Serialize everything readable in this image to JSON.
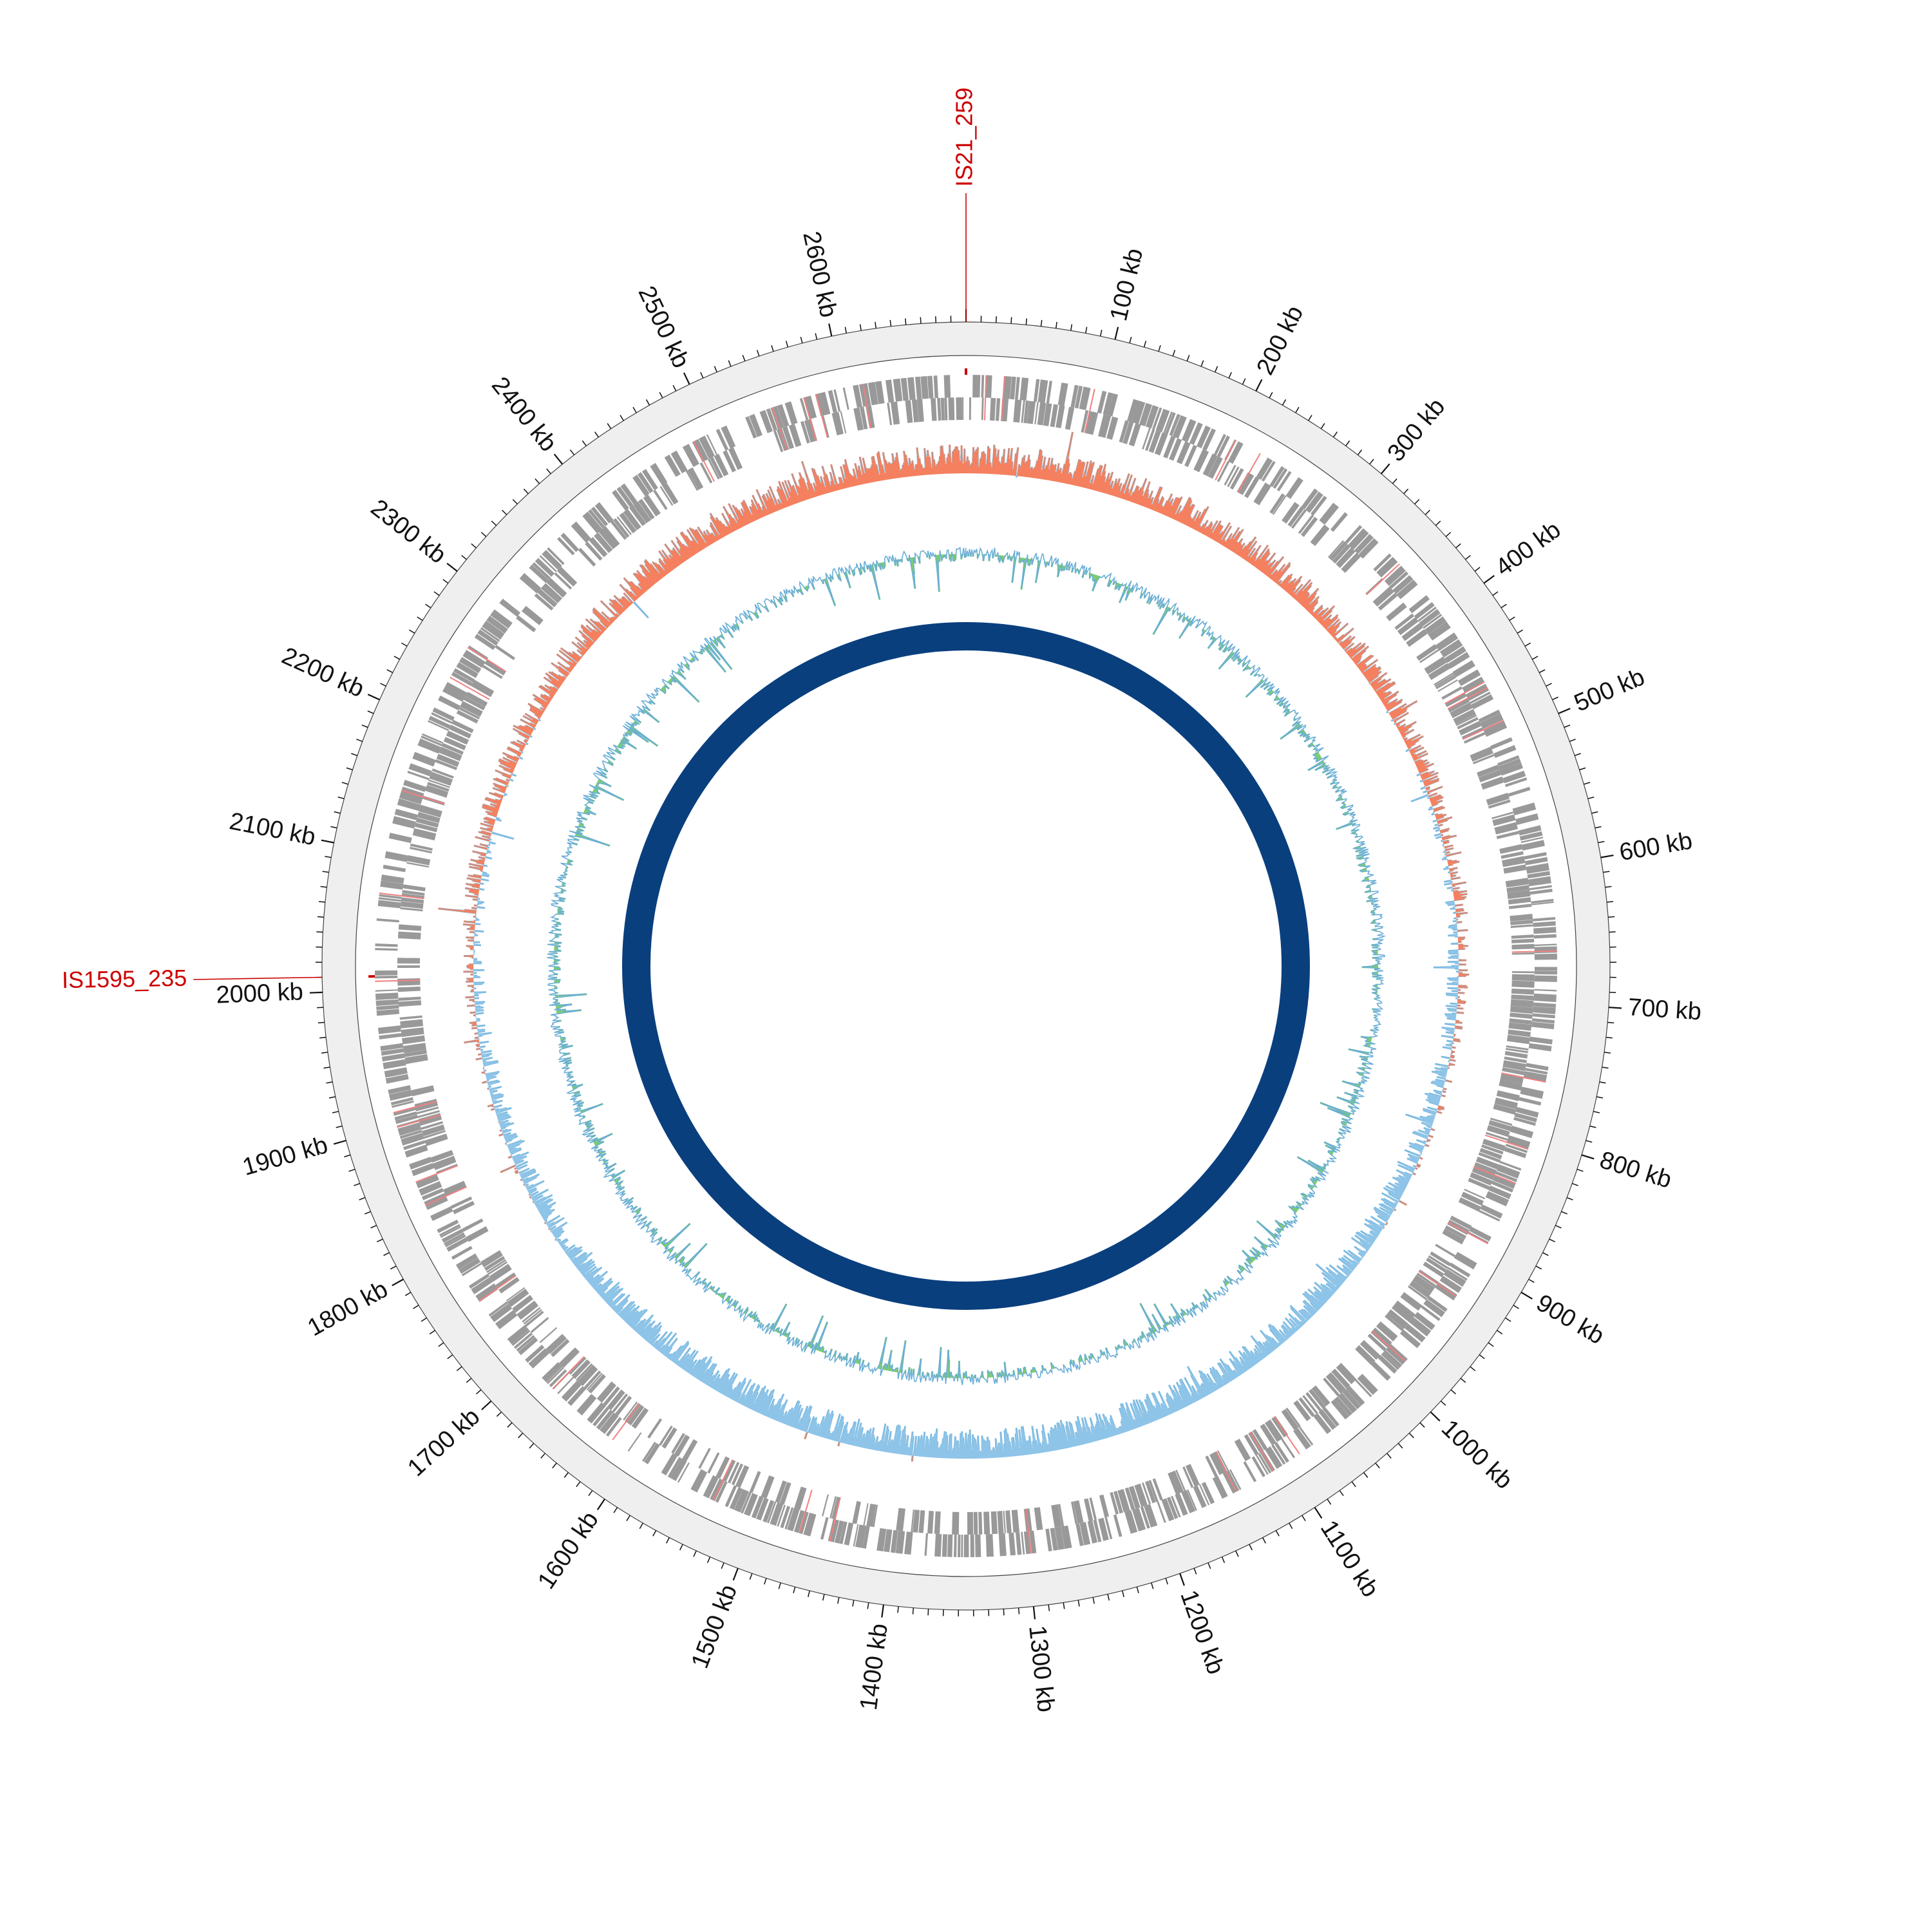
{
  "genome": {
    "length_kb": 2690,
    "tick_unit": "kb",
    "major_tick_step_kb": 100,
    "minor_tick_step_kb": 10,
    "tick_labels": [
      "100 kb",
      "200 kb",
      "300 kb",
      "400 kb",
      "500 kb",
      "600 kb",
      "700 kb",
      "800 kb",
      "900 kb",
      "1000 kb",
      "1100 kb",
      "1200 kb",
      "1300 kb",
      "1400 kb",
      "1500 kb",
      "1600 kb",
      "1700 kb",
      "1800 kb",
      "1900 kb",
      "2000 kb",
      "2100 kb",
      "2200 kb",
      "2300 kb",
      "2400 kb",
      "2500 kb",
      "2600 kb"
    ]
  },
  "insertion_sequences": [
    {
      "name": "IS21_259",
      "position_kb": 0
    },
    {
      "name": "IS1595_235",
      "position_kb": 2010
    }
  ],
  "tracks": {
    "genes": {
      "color": "#999999",
      "highlight_color": "#f08080"
    },
    "gc_skew": {
      "positive_color": "#f4805f",
      "negative_color": "#8ec4e8",
      "line_color": "#6aaed6"
    },
    "gc_content": {
      "above_color": "#7ccc72",
      "below_color": "#8ec4e8",
      "line_color": "#6aaed6"
    },
    "inner_ring": {
      "color": "#0a3f7e"
    }
  },
  "colors": {
    "ideogram_fill": "#efefef",
    "ideogram_stroke": "#444444",
    "is_label": "#cc0000",
    "tick": "#111111"
  }
}
